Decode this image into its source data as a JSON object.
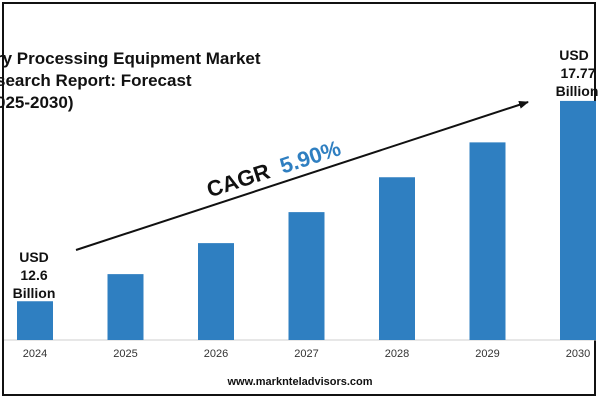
{
  "chart_data": {
    "type": "bar",
    "title_lines": [
      "ry Processing Equipment Market",
      "search Report: Forecast",
      "025-2030)"
    ],
    "categories": [
      "2024",
      "2025",
      "2026",
      "2027",
      "2028",
      "2029",
      "2030"
    ],
    "values": [
      12.6,
      13.3,
      14.1,
      14.9,
      15.8,
      16.7,
      17.77
    ],
    "units": "USD Billion",
    "ylim": [
      11.6,
      18.0
    ],
    "bar_color": "#2f7fc1",
    "grid": false,
    "cagr_label": "CAGR",
    "cagr_value": "5.90%",
    "cagr_value_color": "#2f7fc1",
    "start_annotation": [
      "USD",
      "12.6",
      "Billion"
    ],
    "end_annotation": [
      "USD",
      "17.77",
      "Billion"
    ]
  },
  "footer": {
    "website": "www.marknteladvisors.com"
  }
}
